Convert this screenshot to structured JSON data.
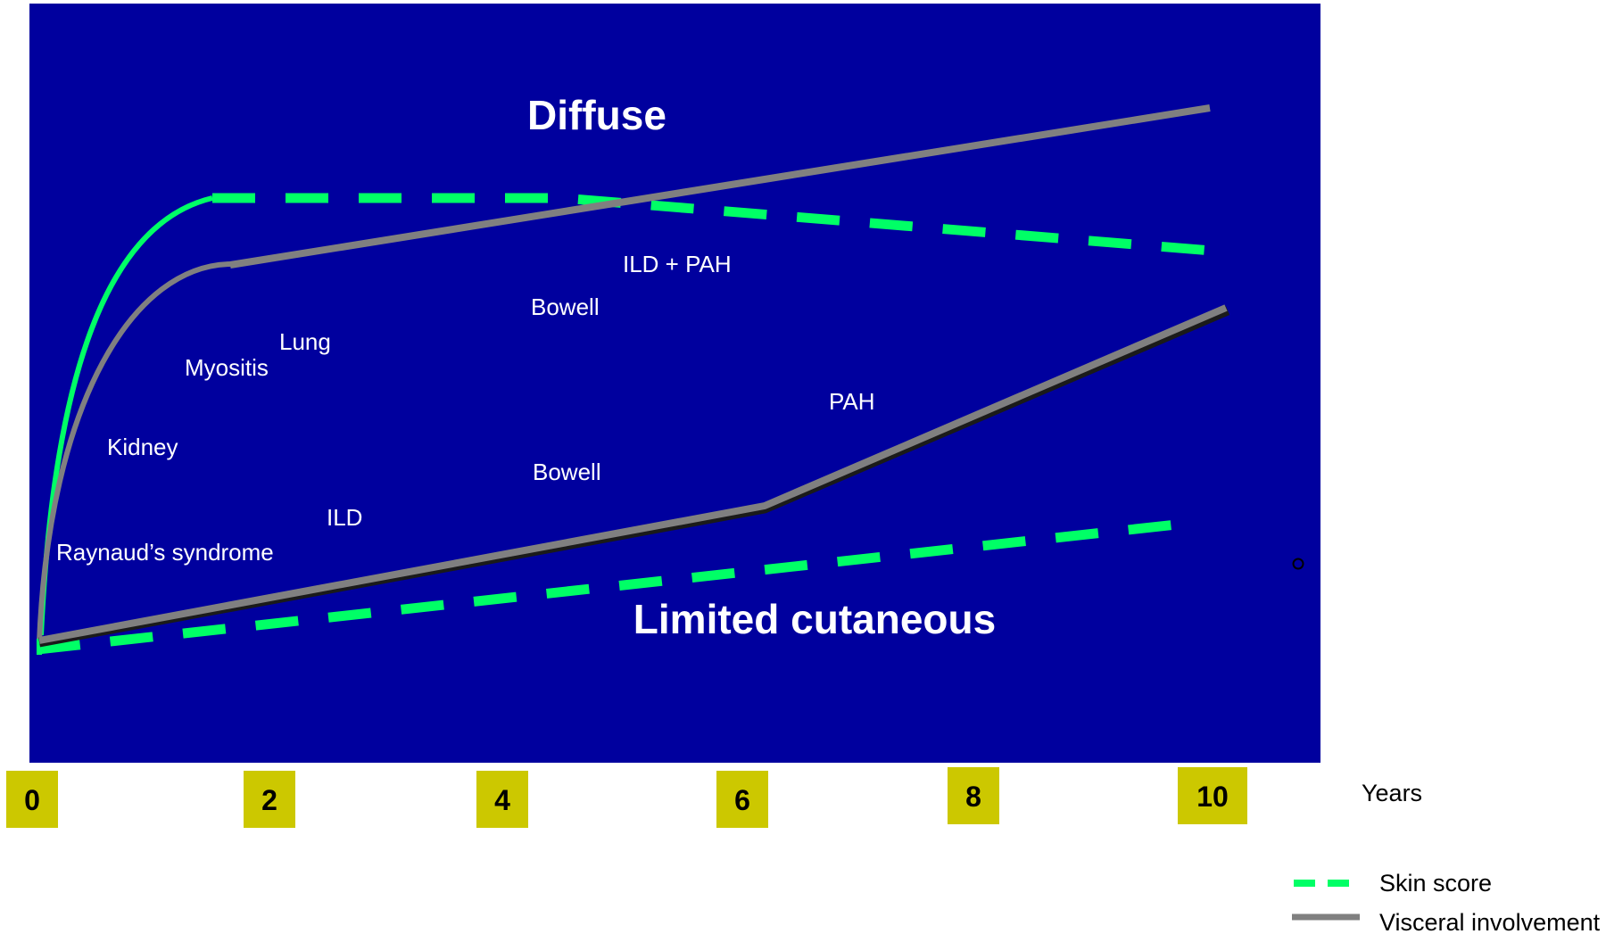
{
  "colors": {
    "panel": "#00009E",
    "skin_score": "#00FF66",
    "visceral": "#808080",
    "tick_box": "#CCC800",
    "text_on_panel": "#FFFFFF"
  },
  "regions": {
    "diffuse": "Diffuse",
    "limited": "Limited cutaneous"
  },
  "annotations": {
    "ild_pah": "ILD + PAH",
    "bowell_diffuse": "Bowell",
    "lung": "Lung",
    "myositis": "Myositis",
    "kidney": "Kidney",
    "pah": "PAH",
    "bowell_limited": "Bowell",
    "ild": "ILD",
    "raynaud": "Raynaud’s syndrome"
  },
  "axis": {
    "unit_label": "Years",
    "ticks": [
      "0",
      "2",
      "4",
      "6",
      "8",
      "10"
    ]
  },
  "legend": {
    "skin_score": "Skin score",
    "visceral": "Visceral involvement"
  }
}
